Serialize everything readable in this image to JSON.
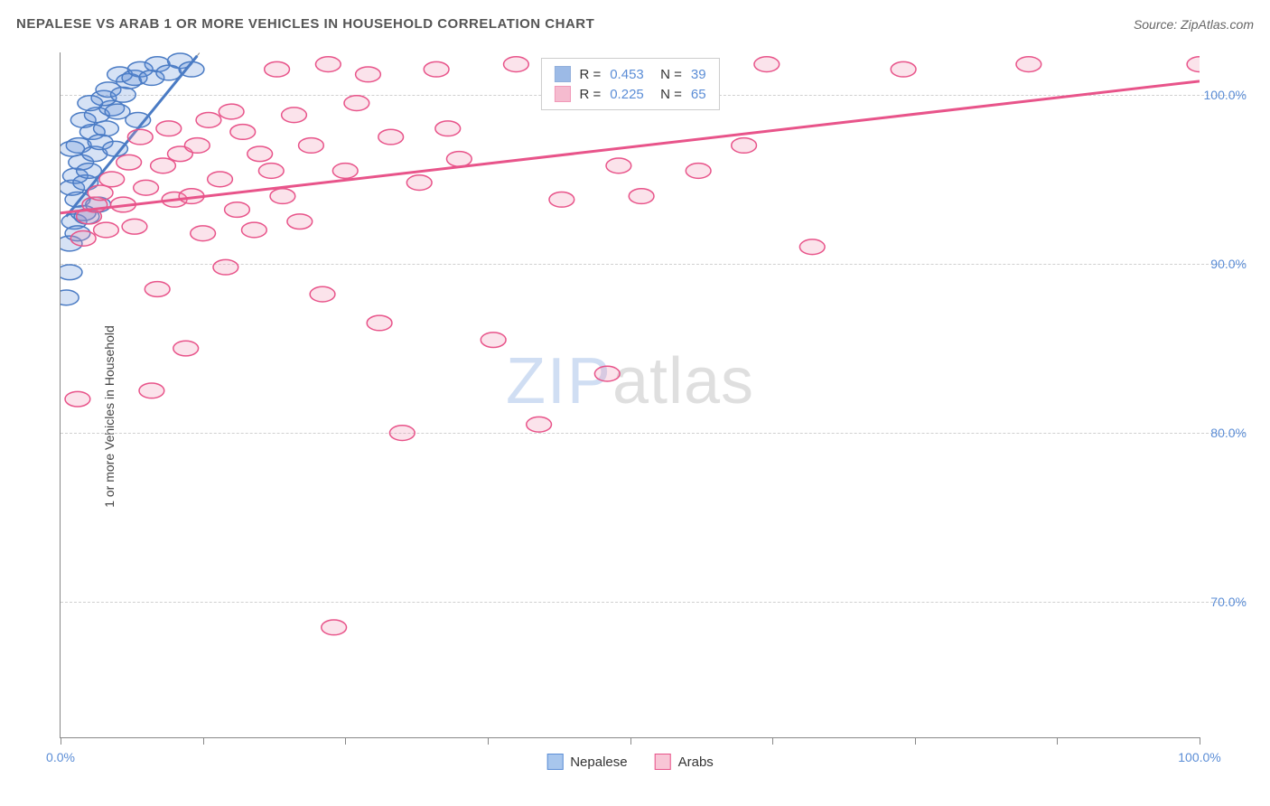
{
  "header": {
    "title": "NEPALESE VS ARAB 1 OR MORE VEHICLES IN HOUSEHOLD CORRELATION CHART",
    "source": "Source: ZipAtlas.com"
  },
  "watermark": {
    "zip": "ZIP",
    "atlas": "atlas"
  },
  "chart": {
    "type": "scatter",
    "y_axis_label": "1 or more Vehicles in Household",
    "background_color": "#ffffff",
    "grid_color": "#d0d0d0",
    "axis_color": "#888888",
    "tick_label_color": "#5b8dd6",
    "label_fontsize": 14,
    "xlim": [
      0,
      100
    ],
    "ylim": [
      62,
      102.5
    ],
    "x_ticks": [
      0,
      12.5,
      25,
      37.5,
      50,
      62.5,
      75,
      87.5,
      100
    ],
    "x_tick_labels": {
      "0": "0.0%",
      "100": "100.0%"
    },
    "y_gridlines": [
      70,
      80,
      90,
      100
    ],
    "y_tick_labels": {
      "70": "70.0%",
      "80": "80.0%",
      "90": "90.0%",
      "100": "100.0%"
    },
    "marker_radius": 11,
    "marker_stroke_width": 1.5,
    "marker_fill_opacity": 0.25,
    "line_width": 3,
    "series": [
      {
        "name": "Nepalese",
        "color": "#5b8dd6",
        "stroke_color": "#4a7bc4",
        "r_value": "0.453",
        "n_value": "39",
        "trend": {
          "x1": 0.5,
          "y1": 92.8,
          "x2": 12,
          "y2": 102.3,
          "dashed_x1": 12,
          "dashed_y1": 102.3,
          "dashed_x2": 14,
          "dashed_y2": 104
        },
        "points": [
          [
            0.8,
            91.2
          ],
          [
            1.2,
            92.5
          ],
          [
            1.5,
            93.8
          ],
          [
            1.0,
            94.5
          ],
          [
            2.0,
            93.0
          ],
          [
            1.3,
            95.2
          ],
          [
            2.2,
            94.8
          ],
          [
            1.8,
            96.0
          ],
          [
            2.5,
            95.5
          ],
          [
            1.6,
            97.0
          ],
          [
            3.0,
            96.5
          ],
          [
            2.8,
            97.8
          ],
          [
            3.5,
            97.2
          ],
          [
            2.0,
            98.5
          ],
          [
            3.2,
            98.8
          ],
          [
            4.0,
            98.0
          ],
          [
            4.5,
            99.2
          ],
          [
            3.8,
            99.8
          ],
          [
            5.0,
            99.0
          ],
          [
            4.2,
            100.3
          ],
          [
            5.5,
            100.0
          ],
          [
            6.0,
            100.8
          ],
          [
            5.2,
            101.2
          ],
          [
            6.5,
            101.0
          ],
          [
            7.0,
            101.5
          ],
          [
            8.0,
            101.0
          ],
          [
            8.5,
            101.8
          ],
          [
            9.5,
            101.3
          ],
          [
            10.5,
            102.0
          ],
          [
            11.5,
            101.5
          ],
          [
            0.5,
            88.0
          ],
          [
            0.8,
            89.5
          ],
          [
            1.5,
            91.8
          ],
          [
            2.3,
            92.8
          ],
          [
            3.3,
            93.5
          ],
          [
            1.0,
            96.8
          ],
          [
            2.6,
            99.5
          ],
          [
            4.8,
            96.8
          ],
          [
            6.8,
            98.5
          ]
        ]
      },
      {
        "name": "Arabs",
        "color": "#f08eb0",
        "stroke_color": "#e8548a",
        "r_value": "0.225",
        "n_value": "65",
        "trend": {
          "x1": 0,
          "y1": 93.0,
          "x2": 100,
          "y2": 100.8
        },
        "points": [
          [
            1.5,
            82.0
          ],
          [
            2.0,
            91.5
          ],
          [
            2.5,
            92.8
          ],
          [
            3.0,
            93.5
          ],
          [
            3.5,
            94.2
          ],
          [
            4.0,
            92.0
          ],
          [
            4.5,
            95.0
          ],
          [
            5.5,
            93.5
          ],
          [
            6.0,
            96.0
          ],
          [
            6.5,
            92.2
          ],
          [
            7.0,
            97.5
          ],
          [
            7.5,
            94.5
          ],
          [
            8.0,
            82.5
          ],
          [
            8.5,
            88.5
          ],
          [
            9.0,
            95.8
          ],
          [
            9.5,
            98.0
          ],
          [
            10.0,
            93.8
          ],
          [
            10.5,
            96.5
          ],
          [
            11.0,
            85.0
          ],
          [
            11.5,
            94.0
          ],
          [
            12.0,
            97.0
          ],
          [
            12.5,
            91.8
          ],
          [
            13.0,
            98.5
          ],
          [
            14.0,
            95.0
          ],
          [
            14.5,
            89.8
          ],
          [
            15.0,
            99.0
          ],
          [
            15.5,
            93.2
          ],
          [
            16.0,
            97.8
          ],
          [
            17.0,
            92.0
          ],
          [
            17.5,
            96.5
          ],
          [
            18.5,
            95.5
          ],
          [
            19.0,
            101.5
          ],
          [
            19.5,
            94.0
          ],
          [
            20.5,
            98.8
          ],
          [
            21.0,
            92.5
          ],
          [
            22.0,
            97.0
          ],
          [
            23.0,
            88.2
          ],
          [
            23.5,
            101.8
          ],
          [
            24.0,
            68.5
          ],
          [
            25.0,
            95.5
          ],
          [
            26.0,
            99.5
          ],
          [
            27.0,
            101.2
          ],
          [
            28.0,
            86.5
          ],
          [
            29.0,
            97.5
          ],
          [
            30.0,
            80.0
          ],
          [
            31.5,
            94.8
          ],
          [
            33.0,
            101.5
          ],
          [
            34.0,
            98.0
          ],
          [
            35.0,
            96.2
          ],
          [
            38.0,
            85.5
          ],
          [
            40.0,
            101.8
          ],
          [
            42.0,
            80.5
          ],
          [
            44.0,
            93.8
          ],
          [
            46.0,
            101.5
          ],
          [
            48.0,
            83.5
          ],
          [
            49.0,
            95.8
          ],
          [
            50.0,
            101.2
          ],
          [
            51.0,
            94.0
          ],
          [
            56.0,
            95.5
          ],
          [
            60.0,
            97.0
          ],
          [
            62.0,
            101.8
          ],
          [
            66.0,
            91.0
          ],
          [
            74.0,
            101.5
          ],
          [
            85.0,
            101.8
          ],
          [
            100.0,
            101.8
          ]
        ]
      }
    ],
    "legend_bottom": [
      {
        "label": "Nepalese",
        "color": "#a8c6ed",
        "stroke": "#5b8dd6"
      },
      {
        "label": "Arabs",
        "color": "#f8c6d6",
        "stroke": "#e8548a"
      }
    ]
  }
}
